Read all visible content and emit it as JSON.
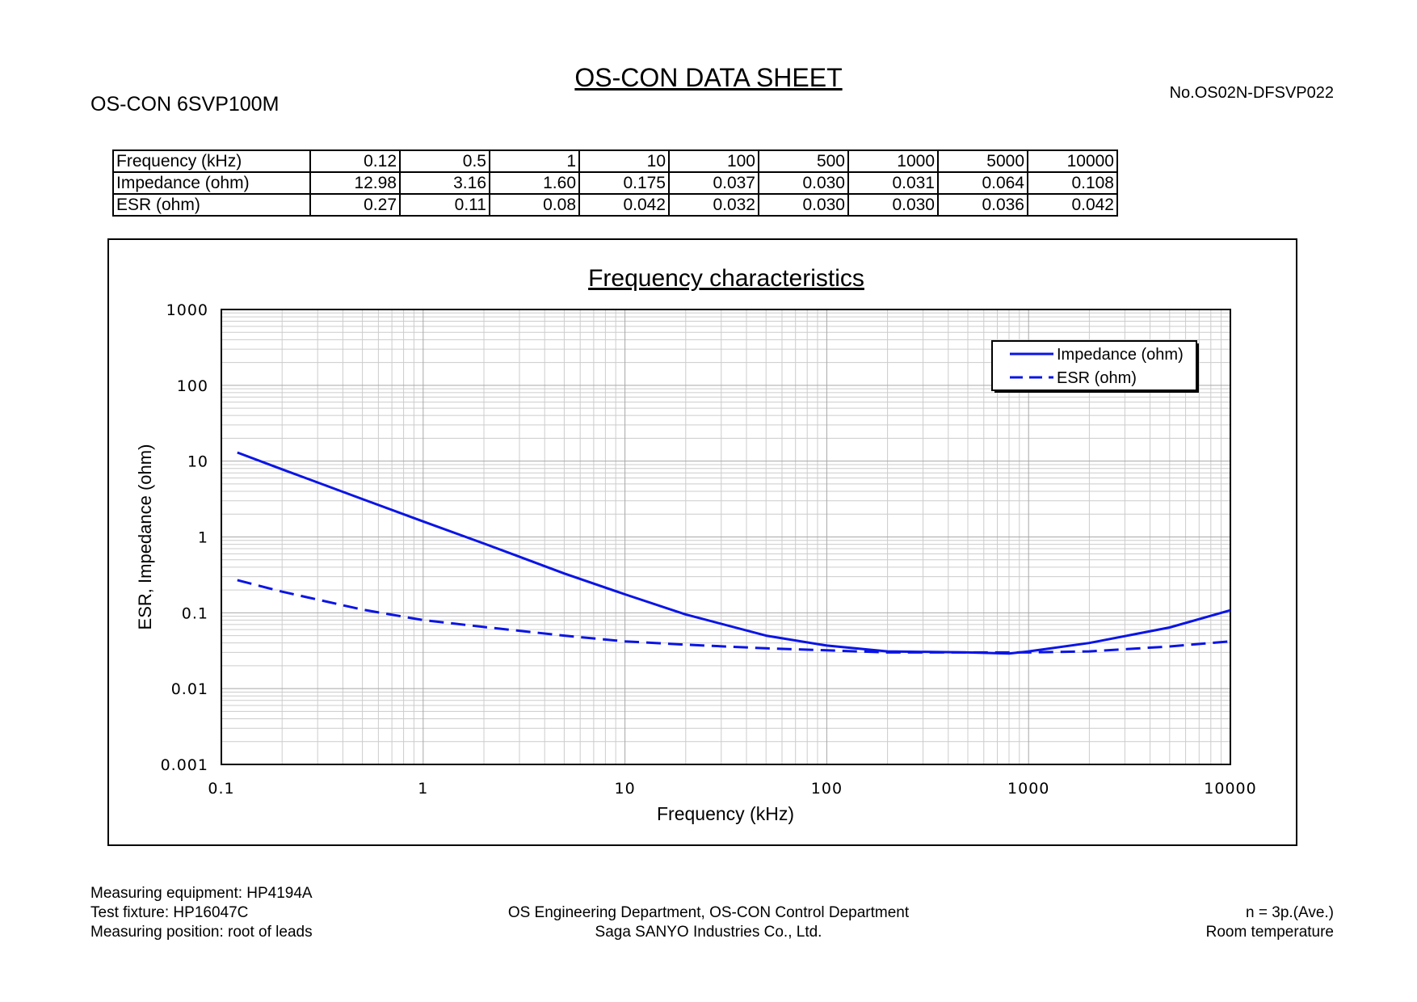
{
  "header": {
    "title": "OS-CON DATA SHEET",
    "product": "OS-CON 6SVP100M",
    "doc_number": "No.OS02N-DFSVP022"
  },
  "table": {
    "rows": [
      {
        "label": "Frequency (kHz)",
        "values": [
          "0.12",
          "0.5",
          "1",
          "10",
          "100",
          "500",
          "1000",
          "5000",
          "10000"
        ]
      },
      {
        "label": "Impedance (ohm)",
        "values": [
          "12.98",
          "3.16",
          "1.60",
          "0.175",
          "0.037",
          "0.030",
          "0.031",
          "0.064",
          "0.108"
        ]
      },
      {
        "label": "ESR (ohm)",
        "values": [
          "0.27",
          "0.11",
          "0.08",
          "0.042",
          "0.032",
          "0.030",
          "0.030",
          "0.036",
          "0.042"
        ]
      }
    ]
  },
  "chart_data": {
    "type": "line",
    "title": "Frequency characteristics",
    "xlabel": "Frequency (kHz)",
    "ylabel": "ESR, Impedance (ohm)",
    "x_scale": "log",
    "y_scale": "log",
    "xlim": [
      0.1,
      10000
    ],
    "ylim": [
      0.001,
      1000
    ],
    "x_ticks": [
      "0.1",
      "1",
      "10",
      "100",
      "1000",
      "10000"
    ],
    "y_ticks": [
      "1000",
      "100",
      "10",
      "1",
      "0.1",
      "0.01",
      "0.001"
    ],
    "grid": true,
    "legend_position": "top-right",
    "line_color": "#0a14e6",
    "series": [
      {
        "name": "Impedance (ohm)",
        "style": "solid",
        "x": [
          0.12,
          0.2,
          0.5,
          1,
          2,
          5,
          10,
          20,
          50,
          100,
          200,
          500,
          800,
          1000,
          2000,
          5000,
          10000
        ],
        "y": [
          12.98,
          7.8,
          3.16,
          1.6,
          0.82,
          0.33,
          0.175,
          0.095,
          0.05,
          0.037,
          0.031,
          0.03,
          0.029,
          0.031,
          0.04,
          0.064,
          0.108
        ]
      },
      {
        "name": "ESR (ohm)",
        "style": "dashed",
        "x": [
          0.12,
          0.2,
          0.5,
          1,
          2,
          5,
          10,
          20,
          50,
          100,
          200,
          500,
          1000,
          2000,
          5000,
          10000
        ],
        "y": [
          0.27,
          0.19,
          0.11,
          0.08,
          0.065,
          0.05,
          0.042,
          0.038,
          0.034,
          0.032,
          0.03,
          0.03,
          0.03,
          0.031,
          0.036,
          0.042
        ]
      }
    ]
  },
  "footer": {
    "left": [
      "Measuring equipment: HP4194A",
      "Test fixture: HP16047C",
      "Measuring position: root of leads"
    ],
    "center": [
      "OS Engineering Department, OS-CON Control Department",
      "Saga SANYO Industries Co., Ltd."
    ],
    "right": [
      "n = 3p.(Ave.)",
      "Room temperature"
    ]
  }
}
